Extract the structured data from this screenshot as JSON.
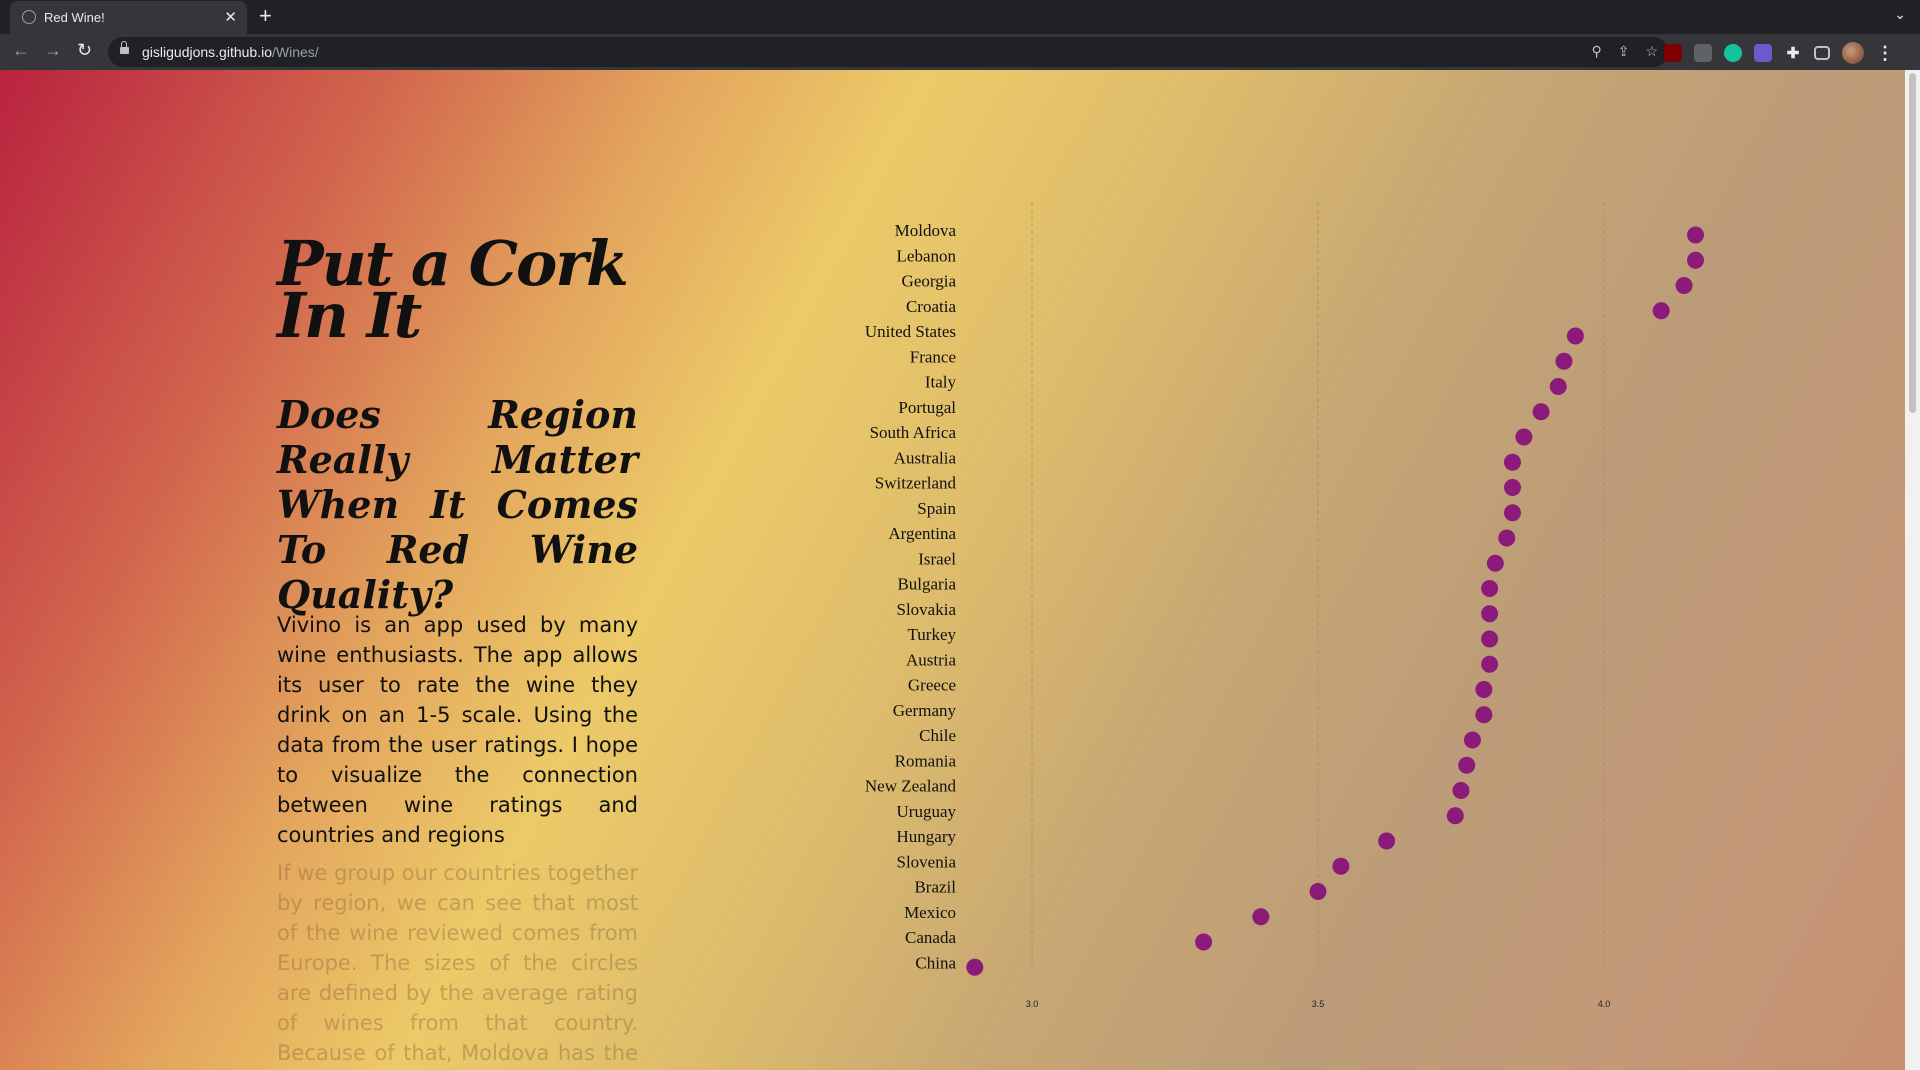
{
  "browser": {
    "tab_title": "Red Wine!",
    "url_host": "gisligudjons.github.io",
    "url_path": "/Wines/",
    "tab_close_glyph": "✕",
    "new_tab_glyph": "+",
    "tab_menu_glyph": "⌄",
    "back_glyph": "←",
    "forward_glyph": "→",
    "reload_glyph": "↻",
    "zoom_glyph": "⚲",
    "share_glyph": "⇪",
    "star_glyph": "☆",
    "puzzle_glyph": "✚",
    "menu_glyph": "⋮",
    "icons": [
      "globe-icon",
      "lock-icon",
      "zoom-icon",
      "share-icon",
      "bookmark-star-icon",
      "extension-puzzle-icon",
      "reading-list-icon",
      "profile-avatar-icon",
      "kebab-menu-icon"
    ]
  },
  "article": {
    "title_line1": "Put a Cork",
    "title_line2": "In It",
    "subtitle": "Does Region Really Matter When It Comes To Red Wine Quality?",
    "intro": "Vivino is an app used by many wine enthusiasts. The app allows its user to rate the wine they drink on an 1-5 scale. Using the data from the user ratings. I hope to visualize the connection between wine ratings and countries and regions",
    "next_paragraph": "If we group our countries together by region, we can see that most of the wine reviewed comes from Europe. The sizes of the circles are defined by the average rating of wines from that country. Because of that, Moldova has the biggest circle,"
  },
  "colors": {
    "dot": "#8b1a7a",
    "gridline": "#a08860"
  },
  "chart_data": {
    "type": "scatter",
    "title": "",
    "xlabel": "",
    "ylabel": "",
    "xlim": [
      2.95,
      4.33
    ],
    "xticks": [
      "3.0",
      "3.5",
      "4.0"
    ],
    "xtick_values": [
      3.0,
      3.5,
      4.0
    ],
    "grid": true,
    "categories": [
      "Moldova",
      "Lebanon",
      "Georgia",
      "Croatia",
      "United States",
      "France",
      "Italy",
      "Portugal",
      "South Africa",
      "Australia",
      "Switzerland",
      "Spain",
      "Argentina",
      "Israel",
      "Bulgaria",
      "Slovakia",
      "Turkey",
      "Austria",
      "Greece",
      "Germany",
      "Chile",
      "Romania",
      "New Zealand",
      "Uruguay",
      "Hungary",
      "Slovenia",
      "Brazil",
      "Mexico",
      "Canada",
      "China"
    ],
    "values": [
      4.16,
      4.16,
      4.14,
      4.1,
      3.95,
      3.93,
      3.92,
      3.89,
      3.86,
      3.84,
      3.84,
      3.84,
      3.83,
      3.81,
      3.8,
      3.8,
      3.8,
      3.8,
      3.79,
      3.79,
      3.77,
      3.76,
      3.75,
      3.74,
      3.62,
      3.54,
      3.5,
      3.4,
      3.3,
      2.9
    ]
  }
}
